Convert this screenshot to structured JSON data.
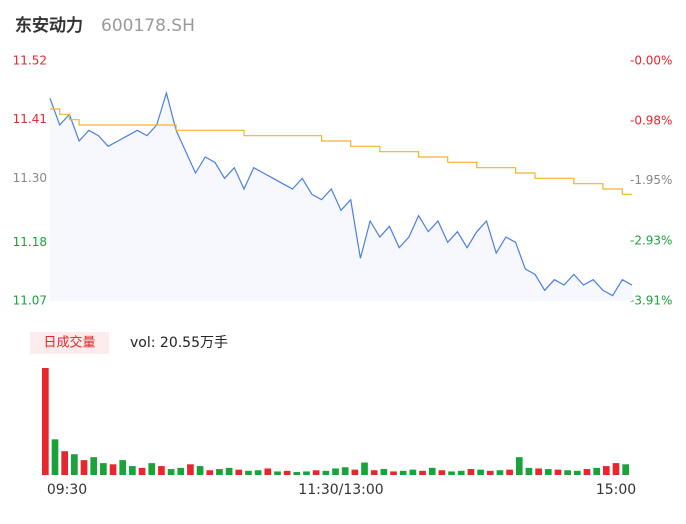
{
  "header": {
    "name": "东安动力",
    "code": "600178.SH"
  },
  "chart_data": [
    {
      "type": "line",
      "x": [
        0,
        4,
        8,
        12,
        16,
        20,
        24,
        28,
        32,
        36,
        40,
        44,
        48,
        52,
        56,
        60,
        64,
        68,
        72,
        76,
        80,
        84,
        88,
        92,
        96,
        100,
        104,
        108,
        112,
        116,
        120,
        124,
        128,
        132,
        136,
        140,
        144,
        148,
        152,
        156,
        160,
        164,
        168,
        172,
        176,
        180,
        184,
        188,
        192,
        196,
        200,
        204,
        208,
        212,
        216,
        220,
        224,
        228,
        232,
        236,
        240
      ],
      "xlim": [
        0,
        240
      ],
      "xticks": [
        {
          "value": 0,
          "label": "09:30"
        },
        {
          "value": 120,
          "label": "11:30/13:00"
        },
        {
          "value": 240,
          "label": "15:00"
        }
      ],
      "ylim": [
        11.07,
        11.52
      ],
      "yticks": [
        11.52,
        11.41,
        {
          "value": 11.3,
          "label": "11.30"
        },
        11.18,
        11.07
      ],
      "ytick_colors": [
        "#e8262d",
        "#e8262d",
        "#888888",
        "#1aa33a",
        "#1aa33a"
      ],
      "y2lim": [
        -3.91,
        0
      ],
      "y2ticks": [
        {
          "value": 0,
          "label": "-0.00%"
        },
        {
          "value": -0.98,
          "label": "-0.98%"
        },
        {
          "value": -1.95,
          "label": "-1.95%"
        },
        {
          "value": -2.93,
          "label": "-2.93%"
        },
        {
          "value": -3.91,
          "label": "-3.91%"
        }
      ],
      "y2tick_colors": [
        "#e8262d",
        "#e8262d",
        "#888888",
        "#1aa33a",
        "#1aa33a"
      ],
      "series": [
        {
          "name": "price",
          "color": "#4a7fe0",
          "values": [
            11.45,
            11.4,
            11.42,
            11.37,
            11.39,
            11.38,
            11.36,
            11.37,
            11.38,
            11.39,
            11.38,
            11.4,
            11.46,
            11.39,
            11.35,
            11.31,
            11.34,
            11.33,
            11.3,
            11.32,
            11.28,
            11.32,
            11.31,
            11.3,
            11.29,
            11.28,
            11.3,
            11.27,
            11.26,
            11.28,
            11.24,
            11.26,
            11.15,
            11.22,
            11.19,
            11.21,
            11.17,
            11.19,
            11.23,
            11.2,
            11.22,
            11.18,
            11.2,
            11.17,
            11.2,
            11.22,
            11.16,
            11.19,
            11.18,
            11.13,
            11.12,
            11.09,
            11.11,
            11.1,
            11.12,
            11.1,
            11.11,
            11.09,
            11.08,
            11.11,
            11.1
          ]
        },
        {
          "name": "average",
          "color": "#f0b429",
          "values": [
            11.43,
            11.42,
            11.41,
            11.4,
            11.4,
            11.4,
            11.4,
            11.4,
            11.4,
            11.4,
            11.4,
            11.4,
            11.4,
            11.39,
            11.39,
            11.39,
            11.39,
            11.39,
            11.39,
            11.39,
            11.38,
            11.38,
            11.38,
            11.38,
            11.38,
            11.38,
            11.38,
            11.38,
            11.37,
            11.37,
            11.37,
            11.36,
            11.36,
            11.36,
            11.35,
            11.35,
            11.35,
            11.35,
            11.34,
            11.34,
            11.34,
            11.33,
            11.33,
            11.33,
            11.32,
            11.32,
            11.32,
            11.32,
            11.31,
            11.31,
            11.3,
            11.3,
            11.3,
            11.3,
            11.29,
            11.29,
            11.29,
            11.28,
            11.28,
            11.27,
            11.27
          ]
        }
      ]
    },
    {
      "type": "bar",
      "legend": "日成交量",
      "summary": "vol: 20.55万手",
      "ylim": [
        0,
        18000
      ],
      "values": [
        18000,
        6000,
        4000,
        3500,
        2500,
        3000,
        2000,
        1800,
        2500,
        1500,
        1200,
        2000,
        1500,
        1000,
        1200,
        1800,
        1500,
        800,
        1000,
        1200,
        900,
        700,
        800,
        1100,
        600,
        700,
        500,
        600,
        800,
        700,
        1100,
        1300,
        900,
        2100,
        800,
        1000,
        600,
        700,
        900,
        700,
        1200,
        800,
        600,
        700,
        1000,
        900,
        700,
        800,
        900,
        3000,
        1200,
        1100,
        1000,
        900,
        800,
        700,
        1000,
        1200,
        1500,
        2000,
        1800
      ],
      "colors": [
        "#e8262d",
        "#1aa33a",
        "#e8262d",
        "#1aa33a",
        "#e8262d",
        "#1aa33a",
        "#1aa33a",
        "#e8262d",
        "#1aa33a",
        "#1aa33a",
        "#e8262d",
        "#1aa33a",
        "#e8262d",
        "#1aa33a",
        "#1aa33a",
        "#e8262d",
        "#1aa33a",
        "#e8262d",
        "#1aa33a",
        "#1aa33a",
        "#e8262d",
        "#1aa33a",
        "#1aa33a",
        "#e8262d",
        "#1aa33a",
        "#e8262d",
        "#1aa33a",
        "#1aa33a",
        "#e8262d",
        "#1aa33a",
        "#1aa33a",
        "#1aa33a",
        "#e8262d",
        "#1aa33a",
        "#e8262d",
        "#1aa33a",
        "#e8262d",
        "#1aa33a",
        "#1aa33a",
        "#e8262d",
        "#1aa33a",
        "#e8262d",
        "#1aa33a",
        "#1aa33a",
        "#e8262d",
        "#1aa33a",
        "#e8262d",
        "#1aa33a",
        "#e8262d",
        "#1aa33a",
        "#1aa33a",
        "#e8262d",
        "#1aa33a",
        "#e8262d",
        "#1aa33a",
        "#1aa33a",
        "#e8262d",
        "#1aa33a",
        "#e8262d",
        "#e8262d",
        "#1aa33a"
      ]
    }
  ]
}
